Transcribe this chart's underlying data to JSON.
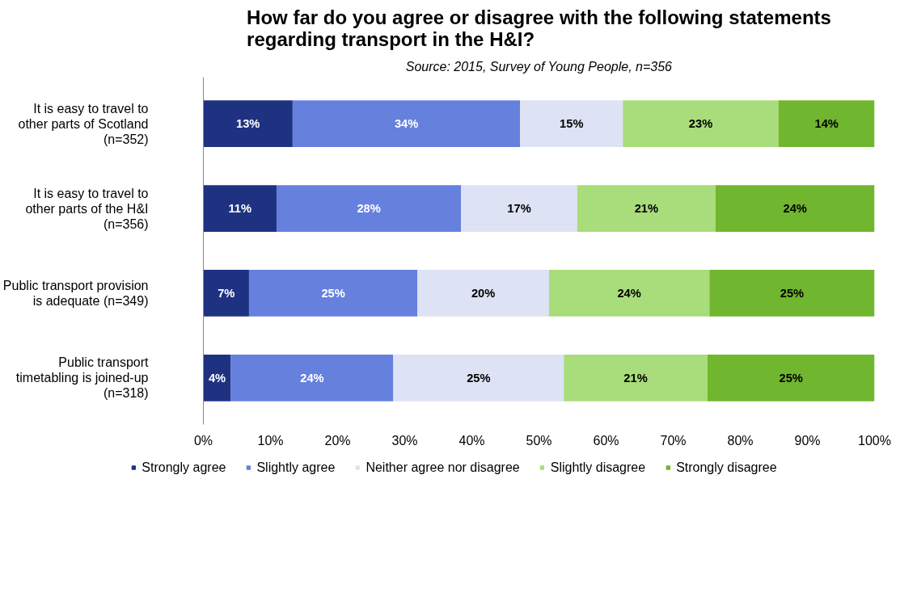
{
  "chart_data": {
    "type": "bar",
    "orientation": "horizontal",
    "stacked": true,
    "title": "How far do you agree or disagree with the following statements\nregarding transport in the H&I?",
    "subtitle": "Source: 2015, Survey of Young People, n=356",
    "categories": [
      "It is easy to travel to\nother parts of Scotland\n(n=352)",
      "It is easy to travel to\nother parts of the H&I\n(n=356)",
      "Public transport provision\nis adequate (n=349)",
      "Public transport\ntimetabling is joined-up\n(n=318)"
    ],
    "series": [
      {
        "name": "Strongly agree",
        "color": "#1f3282",
        "values": [
          13.3,
          10.9,
          6.8,
          4.1
        ],
        "value_labels": [
          "13%",
          "11%",
          "7%",
          "4%"
        ]
      },
      {
        "name": "Slightly agree",
        "color": "#6680dd",
        "values": [
          33.9,
          27.5,
          25.1,
          24.2
        ],
        "value_labels": [
          "34%",
          "28%",
          "25%",
          "24%"
        ]
      },
      {
        "name": "Neither agree nor disagree",
        "color": "#dde2f5",
        "values": [
          15.3,
          17.3,
          19.6,
          25.4
        ],
        "value_labels": [
          "15%",
          "17%",
          "20%",
          "25%"
        ]
      },
      {
        "name": "Slightly disagree",
        "color": "#a9dc7a",
        "values": [
          23.2,
          20.6,
          23.9,
          21.4
        ],
        "value_labels": [
          "23%",
          "21%",
          "24%",
          "21%"
        ]
      },
      {
        "name": "Strongly disagree",
        "color": "#70b62e",
        "values": [
          14.3,
          23.7,
          24.6,
          24.9
        ],
        "value_labels": [
          "14%",
          "24%",
          "25%",
          "25%"
        ]
      }
    ],
    "xlim": [
      0,
      100
    ],
    "xticks": [
      {
        "value": 0,
        "label": "0%"
      },
      {
        "value": 10,
        "label": "10%"
      },
      {
        "value": 20,
        "label": "20%"
      },
      {
        "value": 30,
        "label": "30%"
      },
      {
        "value": 40,
        "label": "40%"
      },
      {
        "value": 50,
        "label": "50%"
      },
      {
        "value": 60,
        "label": "60%"
      },
      {
        "value": 70,
        "label": "70%"
      },
      {
        "value": 80,
        "label": "80%"
      },
      {
        "value": 90,
        "label": "90%"
      },
      {
        "value": 100,
        "label": "100%"
      }
    ],
    "grid": false,
    "legend": "bottom"
  }
}
